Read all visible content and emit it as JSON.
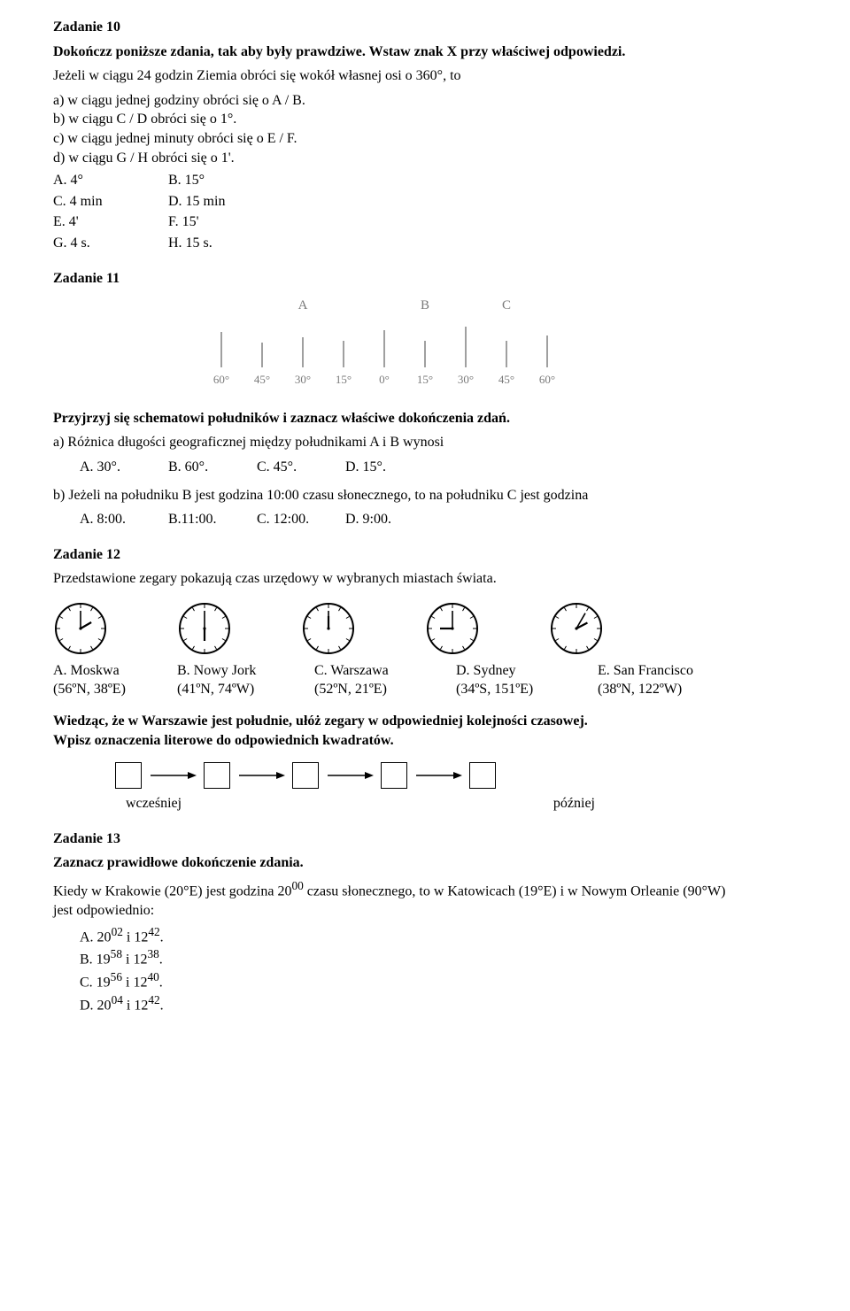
{
  "z10": {
    "title": "Zadanie 10",
    "instr": "Dokończz poniższe zdania, tak aby były prawdziwe. Wstaw znak X przy właściwej odpowiedzi.",
    "intro": "Jeżeli w ciągu 24 godzin Ziemia obróci się wokół własnej osi o 360°, to",
    "a": "a) w ciągu jednej godziny obróci się o A / B.",
    "b": "b) w ciągu C / D obróci się o 1°.",
    "c": "c) w ciągu jednej minuty obróci się o E / F.",
    "d": "d) w ciągu G / H obróci się o 1'.",
    "ans": {
      "A": "A. 4°",
      "B": "B. 15°",
      "C": "C. 4 min",
      "D": "D. 15 min",
      "E": "E. 4'",
      "F": "F. 15'",
      "G": "G. 4 s.",
      "H": "H. 15 s."
    }
  },
  "z11": {
    "title": "Zadanie 11",
    "diagram": {
      "ticks": [
        "60°",
        "45°",
        "30°",
        "15°",
        "0°",
        "15°",
        "30°",
        "45°",
        "60°"
      ],
      "heights": [
        40,
        28,
        34,
        30,
        42,
        30,
        46,
        30,
        36
      ],
      "markers": {
        "A": 2,
        "B": 5,
        "C": 7
      },
      "text_color": "#7a7a7a",
      "line_color": "#808080"
    },
    "instr": "Przyjrzyj się schematowi południków i zaznacz właściwe dokończenia zdań.",
    "qa_intro": "a) Różnica długości geograficznej między południkami A i B wynosi",
    "qa_opts": {
      "A": "A. 30°.",
      "B": "B. 60°.",
      "C": "C. 45°.",
      "D": "D. 15°."
    },
    "qb_intro": "b) Jeżeli na południku B jest godzina 10:00 czasu słonecznego, to na południku C jest godzina",
    "qb_opts": {
      "A": "A. 8:00.",
      "B": "B.11:00.",
      "C": "C. 12:00.",
      "D": "D. 9:00."
    }
  },
  "z12": {
    "title": "Zadanie 12",
    "intro": "Przedstawione zegary pokazują czas urzędowy w wybranych miastach świata.",
    "clocks": [
      {
        "hour": 14,
        "minute": 0
      },
      {
        "hour": 6,
        "minute": 0
      },
      {
        "hour": 12,
        "minute": 0
      },
      {
        "hour": 21,
        "minute": 0
      },
      {
        "hour": 14,
        "minute": 5
      }
    ],
    "clock_style": {
      "radius": 28,
      "stroke": "#000000",
      "stroke_width": 2,
      "tick_len": 4,
      "hour_len": 14,
      "minute_len": 20
    },
    "labels": {
      "A": "A. Moskwa",
      "Ac": "(56ºN, 38ºE)",
      "B": "B. Nowy Jork",
      "Bc": "(41ºN, 74ºW)",
      "C": "C. Warszawa",
      "Cc": "(52ºN, 21ºE)",
      "D": "D. Sydney",
      "Dc": "(34ºS, 151ºE)",
      "E": "E. San Francisco",
      "Ec": "(38ºN, 122ºW)"
    },
    "instr1": "Wiedząc, że w Warszawie jest południe, ułóż zegary w odpowiedniej kolejności czasowej.",
    "instr2": "Wpisz oznaczenia literowe do odpowiednich kwadratów.",
    "earlier": "wcześniej",
    "later": "później"
  },
  "z13": {
    "title": "Zadanie 13",
    "instr": "Zaznacz prawidłowe dokończenie zdania.",
    "body_a": "Kiedy w Krakowie (20°E) jest godzina 20",
    "body_b": " czasu słonecznego, to w Katowicach (19°E) i w Nowym Orleanie (90°W)",
    "body_c": "jest odpowiednio:",
    "sup": "00",
    "opts": {
      "A": {
        "p": "A. 20",
        "s1": "02",
        "m": " i 12",
        "s2": "42",
        "e": "."
      },
      "B": {
        "p": "B. 19",
        "s1": "58",
        "m": " i 12",
        "s2": "38",
        "e": "."
      },
      "C": {
        "p": "C. 19",
        "s1": "56",
        "m": " i 12",
        "s2": "40",
        "e": "."
      },
      "D": {
        "p": "D. 20",
        "s1": "04",
        "m": " i 12",
        "s2": "42",
        "e": "."
      }
    }
  }
}
